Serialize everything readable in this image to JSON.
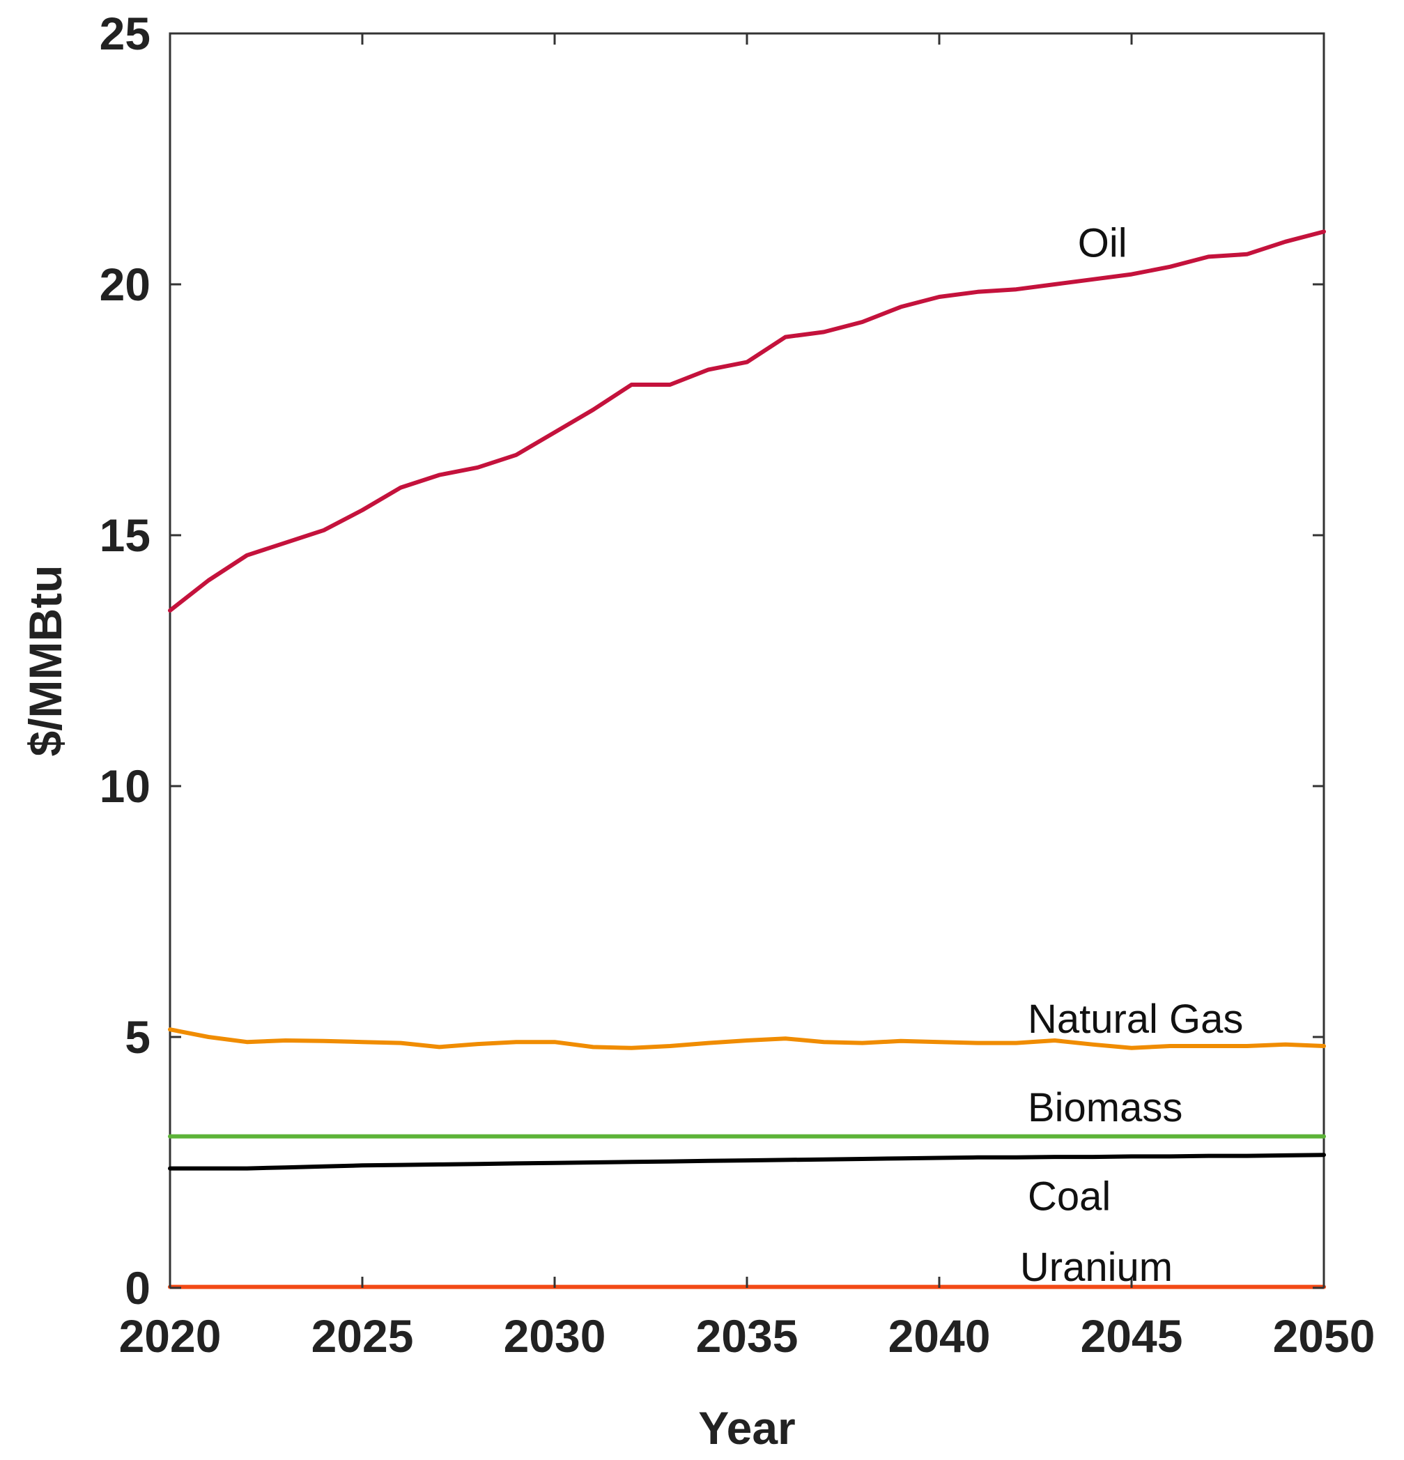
{
  "chart_data": {
    "type": "line",
    "title": "",
    "xlabel": "Year",
    "ylabel": "$/MMBtu",
    "xlim": [
      2020,
      2050
    ],
    "ylim": [
      0,
      25
    ],
    "xticks": [
      2020,
      2025,
      2030,
      2035,
      2040,
      2045,
      2050
    ],
    "yticks": [
      0,
      5,
      10,
      15,
      20,
      25
    ],
    "grid": false,
    "legend": "none (series labeled inline)",
    "x": [
      2020,
      2021,
      2022,
      2023,
      2024,
      2025,
      2026,
      2027,
      2028,
      2029,
      2030,
      2031,
      2032,
      2033,
      2034,
      2035,
      2036,
      2037,
      2038,
      2039,
      2040,
      2041,
      2042,
      2043,
      2044,
      2045,
      2046,
      2047,
      2048,
      2049,
      2050
    ],
    "series": [
      {
        "name": "Oil",
        "color": "#c4123c",
        "values": [
          13.5,
          14.1,
          14.6,
          14.85,
          15.1,
          15.5,
          15.95,
          16.2,
          16.35,
          16.6,
          17.05,
          17.5,
          18.0,
          18.0,
          18.3,
          18.45,
          18.95,
          19.05,
          19.25,
          19.55,
          19.75,
          19.85,
          19.9,
          20.0,
          20.1,
          20.2,
          20.35,
          20.55,
          20.6,
          20.85,
          21.05
        ]
      },
      {
        "name": "Natural Gas",
        "color": "#f08c00",
        "values": [
          5.15,
          5.0,
          4.9,
          4.93,
          4.92,
          4.9,
          4.88,
          4.8,
          4.86,
          4.9,
          4.9,
          4.8,
          4.78,
          4.82,
          4.88,
          4.93,
          4.97,
          4.9,
          4.88,
          4.92,
          4.9,
          4.88,
          4.88,
          4.93,
          4.85,
          4.78,
          4.82,
          4.82,
          4.82,
          4.85,
          4.82
        ]
      },
      {
        "name": "Biomass",
        "color": "#5cb338",
        "values": [
          3.02,
          3.02,
          3.02,
          3.02,
          3.02,
          3.02,
          3.02,
          3.02,
          3.02,
          3.02,
          3.02,
          3.02,
          3.02,
          3.02,
          3.02,
          3.02,
          3.02,
          3.02,
          3.02,
          3.02,
          3.02,
          3.02,
          3.02,
          3.02,
          3.02,
          3.02,
          3.02,
          3.02,
          3.02,
          3.02,
          3.02
        ]
      },
      {
        "name": "Coal",
        "color": "#000000",
        "values": [
          2.38,
          2.38,
          2.38,
          2.4,
          2.42,
          2.44,
          2.45,
          2.46,
          2.47,
          2.48,
          2.49,
          2.5,
          2.51,
          2.52,
          2.53,
          2.54,
          2.55,
          2.56,
          2.57,
          2.58,
          2.59,
          2.6,
          2.6,
          2.61,
          2.61,
          2.62,
          2.62,
          2.63,
          2.63,
          2.64,
          2.65
        ]
      },
      {
        "name": "Uranium",
        "color": "#f24a16",
        "values": [
          0.02,
          0.02,
          0.02,
          0.02,
          0.02,
          0.02,
          0.02,
          0.02,
          0.02,
          0.02,
          0.02,
          0.02,
          0.02,
          0.02,
          0.02,
          0.02,
          0.02,
          0.02,
          0.02,
          0.02,
          0.02,
          0.02,
          0.02,
          0.02,
          0.02,
          0.02,
          0.02,
          0.02,
          0.02,
          0.02,
          0.02
        ]
      }
    ],
    "annotations": [
      "Oil",
      "Natural Gas",
      "Biomass",
      "Coal",
      "Uranium"
    ]
  }
}
